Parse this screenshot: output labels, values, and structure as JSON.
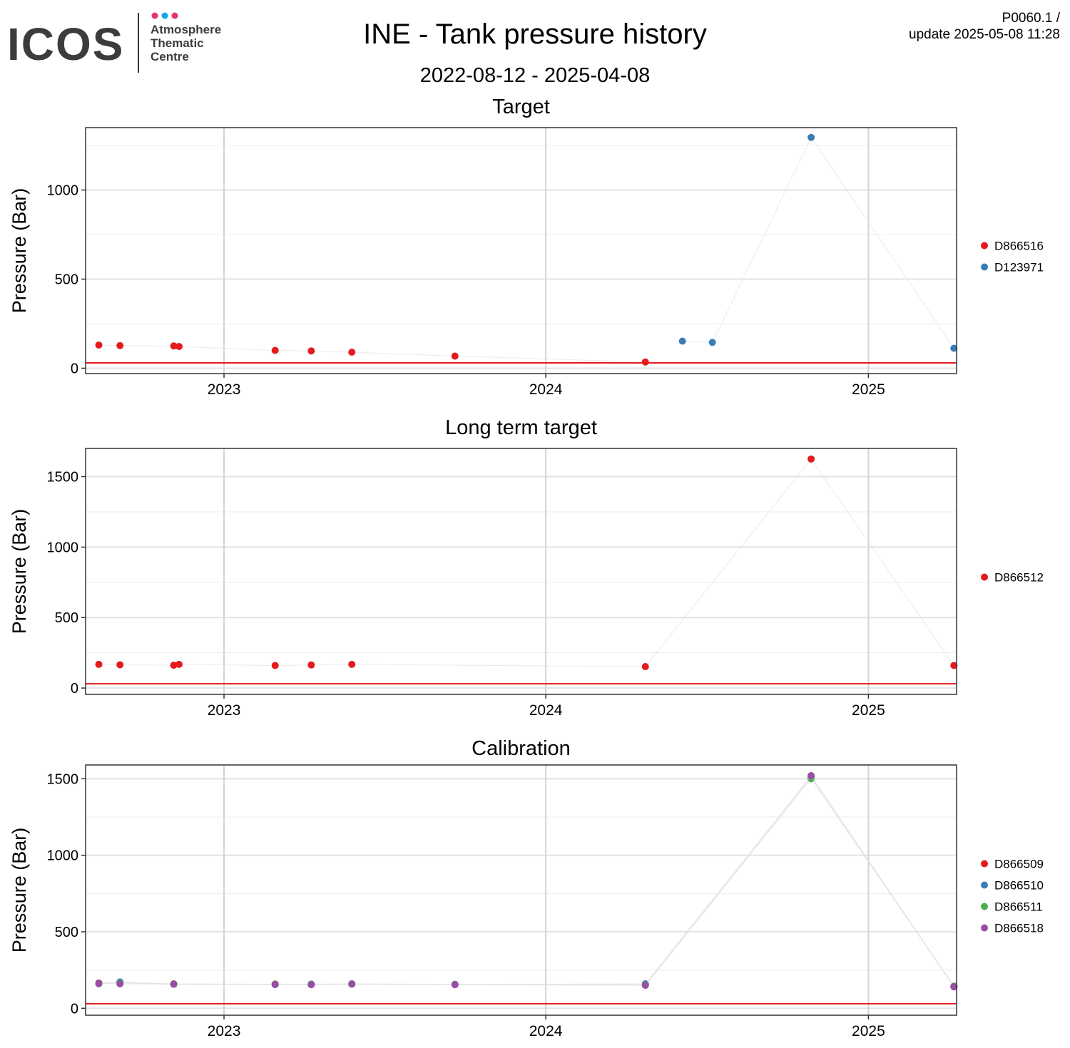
{
  "header": {
    "logo_main": "ICOS",
    "logo_line1": "Atmosphere",
    "logo_line2": "Thematic",
    "logo_line3": "Centre",
    "title": "INE - Tank pressure history",
    "date_range": "2022-08-12 - 2025-04-08",
    "meta_line1": "P0060.1 /",
    "meta_line2": "update  2025-05-08 11:28"
  },
  "colors": {
    "logo_dot_1": "#e6336b",
    "logo_dot_2": "#1aa3e8",
    "logo_dot_3": "#e6336b",
    "threshold": "#e41a1c"
  },
  "chart_data": [
    {
      "type": "scatter",
      "title": "Target",
      "ylabel": "Pressure (Bar)",
      "xlabel": "",
      "x_ticks": [
        "2023",
        "2024",
        "2025"
      ],
      "y_ticks": [
        0,
        500,
        1000
      ],
      "xlim": [
        "2022-07-28",
        "2025-04-11"
      ],
      "ylim": [
        -30,
        1350
      ],
      "grid": true,
      "legend_position": "right",
      "threshold_y": 30,
      "series": [
        {
          "name": "D866516",
          "color": "#e41a1c",
          "points": [
            [
              "2022-08-12",
              130
            ],
            [
              "2022-09-05",
              127
            ],
            [
              "2022-11-05",
              125
            ],
            [
              "2022-11-11",
              122
            ],
            [
              "2023-02-28",
              100
            ],
            [
              "2023-04-10",
              97
            ],
            [
              "2023-05-26",
              90
            ],
            [
              "2023-09-20",
              68
            ],
            [
              "2024-04-23",
              35
            ]
          ]
        },
        {
          "name": "D123971",
          "color": "#377eb8",
          "points": [
            [
              "2024-06-04",
              152
            ],
            [
              "2024-07-08",
              145
            ],
            [
              "2024-10-28",
              1295
            ],
            [
              "2025-04-08",
              112
            ]
          ]
        }
      ]
    },
    {
      "type": "scatter",
      "title": "Long term target",
      "ylabel": "Pressure (Bar)",
      "xlabel": "",
      "x_ticks": [
        "2023",
        "2024",
        "2025"
      ],
      "y_ticks": [
        0,
        500,
        1000,
        1500
      ],
      "xlim": [
        "2022-07-28",
        "2025-04-11"
      ],
      "ylim": [
        -45,
        1700
      ],
      "grid": true,
      "legend_position": "right",
      "threshold_y": 30,
      "series": [
        {
          "name": "D866512",
          "color": "#e41a1c",
          "points": [
            [
              "2022-08-12",
              168
            ],
            [
              "2022-09-05",
              165
            ],
            [
              "2022-11-05",
              162
            ],
            [
              "2022-11-11",
              168
            ],
            [
              "2023-02-28",
              160
            ],
            [
              "2023-04-10",
              164
            ],
            [
              "2023-05-26",
              168
            ],
            [
              "2024-04-23",
              152
            ],
            [
              "2024-10-28",
              1625
            ],
            [
              "2025-04-08",
              160
            ]
          ]
        }
      ]
    },
    {
      "type": "scatter",
      "title": "Calibration",
      "ylabel": "Pressure (Bar)",
      "xlabel": "",
      "x_ticks": [
        "2023",
        "2024",
        "2025"
      ],
      "y_ticks": [
        0,
        500,
        1000,
        1500
      ],
      "xlim": [
        "2022-07-28",
        "2025-04-11"
      ],
      "ylim": [
        -45,
        1590
      ],
      "grid": true,
      "legend_position": "right",
      "threshold_y": 30,
      "series": [
        {
          "name": "D866509",
          "color": "#e41a1c",
          "points": [
            [
              "2022-08-12",
              165
            ],
            [
              "2022-09-05",
              168
            ],
            [
              "2022-11-05",
              160
            ],
            [
              "2023-02-28",
              158
            ],
            [
              "2023-04-10",
              155
            ],
            [
              "2023-05-26",
              158
            ],
            [
              "2023-09-20",
              155
            ],
            [
              "2024-04-23",
              155
            ],
            [
              "2024-10-28",
              1510
            ],
            [
              "2025-04-08",
              145
            ]
          ]
        },
        {
          "name": "D866510",
          "color": "#377eb8",
          "points": [
            [
              "2022-08-12",
              163
            ],
            [
              "2022-09-05",
              172
            ],
            [
              "2022-11-05",
              158
            ],
            [
              "2023-02-28",
              155
            ],
            [
              "2023-04-10",
              158
            ],
            [
              "2023-05-26",
              160
            ],
            [
              "2023-09-20",
              157
            ],
            [
              "2024-04-23",
              160
            ],
            [
              "2024-10-28",
              1515
            ],
            [
              "2025-04-08",
              143
            ]
          ]
        },
        {
          "name": "D866511",
          "color": "#4daf4a",
          "points": [
            [
              "2022-08-12",
              160
            ],
            [
              "2022-09-05",
              165
            ],
            [
              "2022-11-05",
              158
            ],
            [
              "2023-02-28",
              157
            ],
            [
              "2023-04-10",
              156
            ],
            [
              "2023-05-26",
              158
            ],
            [
              "2023-09-20",
              156
            ],
            [
              "2024-04-23",
              152
            ],
            [
              "2024-10-28",
              1500
            ],
            [
              "2025-04-08",
              142
            ]
          ]
        },
        {
          "name": "D866518",
          "color": "#984ea3",
          "points": [
            [
              "2022-08-12",
              162
            ],
            [
              "2022-09-05",
              160
            ],
            [
              "2022-11-05",
              157
            ],
            [
              "2023-02-28",
              156
            ],
            [
              "2023-04-10",
              155
            ],
            [
              "2023-05-26",
              159
            ],
            [
              "2023-09-20",
              155
            ],
            [
              "2024-04-23",
              150
            ],
            [
              "2024-10-28",
              1520
            ],
            [
              "2025-04-08",
              140
            ]
          ]
        }
      ]
    }
  ]
}
